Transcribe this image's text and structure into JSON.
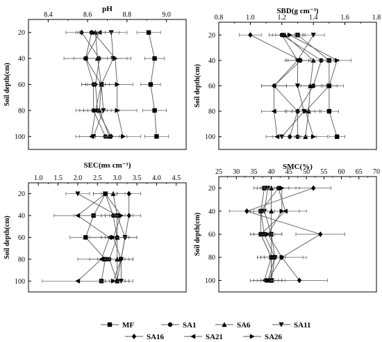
{
  "legend": [
    {
      "name": "MF",
      "marker": "square"
    },
    {
      "name": "SA1",
      "marker": "circle"
    },
    {
      "name": "SA6",
      "marker": "triangle-up"
    },
    {
      "name": "SA11",
      "marker": "triangle-down"
    },
    {
      "name": "SA16",
      "marker": "diamond"
    },
    {
      "name": "SA21",
      "marker": "triangle-left"
    },
    {
      "name": "SA26",
      "marker": "triangle-right"
    }
  ],
  "chart_data": [
    {
      "type": "line",
      "title": "pH",
      "ylabel": "Soil depth(cm)",
      "xlim": [
        8.3,
        9.1
      ],
      "xticks": [
        8.4,
        8.6,
        8.8,
        9.0
      ],
      "ylim": [
        10,
        110
      ],
      "yticks": [
        20,
        40,
        60,
        80,
        100
      ],
      "depths": [
        20,
        40,
        60,
        80,
        100
      ],
      "series": [
        {
          "name": "MF",
          "values": [
            8.91,
            8.94,
            8.92,
            8.94,
            8.95
          ],
          "errors": [
            0.06,
            0.05,
            0.05,
            0.06,
            0.06
          ]
        },
        {
          "name": "SA1",
          "values": [
            8.62,
            8.59,
            8.63,
            8.63,
            8.69
          ],
          "errors": [
            0.07,
            0.06,
            0.06,
            0.07,
            0.07
          ]
        },
        {
          "name": "SA6",
          "values": [
            8.64,
            8.65,
            8.67,
            8.66,
            8.71
          ],
          "errors": [
            0.08,
            0.07,
            0.07,
            0.08,
            0.07
          ]
        },
        {
          "name": "SA11",
          "values": [
            8.72,
            8.73,
            8.67,
            8.68,
            8.63
          ],
          "errors": [
            0.08,
            0.07,
            0.08,
            0.08,
            0.07
          ]
        },
        {
          "name": "SA16",
          "values": [
            8.57,
            8.66,
            8.64,
            8.65,
            8.72
          ],
          "errors": [
            0.08,
            0.08,
            0.07,
            0.07,
            0.08
          ]
        },
        {
          "name": "SA21",
          "values": [
            8.66,
            8.59,
            8.67,
            8.64,
            8.62
          ],
          "errors": [
            0.1,
            0.11,
            0.08,
            0.1,
            0.08
          ]
        },
        {
          "name": "SA26",
          "values": [
            8.63,
            8.74,
            8.75,
            8.75,
            8.78
          ],
          "errors": [
            0.09,
            0.08,
            0.08,
            0.1,
            0.09
          ]
        }
      ]
    },
    {
      "type": "line",
      "title": "SBD(g cm⁻³)",
      "ylabel": "Soil depth(cm)",
      "xlim": [
        0.8,
        1.8
      ],
      "xticks": [
        0.8,
        1.0,
        1.2,
        1.4,
        1.6,
        1.8
      ],
      "ylim": [
        10,
        110
      ],
      "yticks": [
        20,
        40,
        60,
        80,
        100
      ],
      "depths": [
        20,
        40,
        60,
        80,
        100
      ],
      "series": [
        {
          "name": "MF",
          "values": [
            1.3,
            1.5,
            1.5,
            1.5,
            1.55
          ],
          "errors": [
            0.05,
            0.06,
            0.05,
            0.06,
            0.05
          ]
        },
        {
          "name": "SA1",
          "values": [
            1.2,
            1.45,
            1.4,
            1.3,
            1.3
          ],
          "errors": [
            0.08,
            0.08,
            0.08,
            0.07,
            0.06
          ]
        },
        {
          "name": "SA6",
          "values": [
            1.22,
            1.4,
            1.38,
            1.37,
            1.35
          ],
          "errors": [
            0.08,
            0.08,
            0.08,
            0.08,
            0.07
          ]
        },
        {
          "name": "SA11",
          "values": [
            1.4,
            1.3,
            1.3,
            1.34,
            1.2
          ],
          "errors": [
            0.07,
            0.07,
            0.07,
            0.07,
            0.06
          ]
        },
        {
          "name": "SA16",
          "values": [
            1.0,
            1.32,
            1.15,
            1.3,
            1.25
          ],
          "errors": [
            0.07,
            0.08,
            0.08,
            0.08,
            0.07
          ]
        },
        {
          "name": "SA21",
          "values": [
            1.2,
            1.3,
            1.15,
            1.15,
            1.17
          ],
          "errors": [
            0.08,
            0.08,
            0.08,
            0.08,
            0.07
          ]
        },
        {
          "name": "SA26",
          "values": [
            1.25,
            1.55,
            1.5,
            1.35,
            1.4
          ],
          "errors": [
            0.09,
            0.09,
            0.09,
            0.09,
            0.09
          ]
        }
      ]
    },
    {
      "type": "line",
      "title": "SEC(ms cm⁻¹)",
      "ylabel": "Soil depth(cm)",
      "xlim": [
        0.75,
        4.75
      ],
      "xticks": [
        1.0,
        1.5,
        2.0,
        2.5,
        3.0,
        3.5,
        4.0,
        4.5
      ],
      "ylim": [
        10,
        110
      ],
      "yticks": [
        20,
        40,
        60,
        80,
        100
      ],
      "depths": [
        20,
        40,
        60,
        80,
        100
      ],
      "series": [
        {
          "name": "MF",
          "values": [
            2.7,
            2.4,
            2.2,
            2.7,
            2.6
          ],
          "errors": [
            0.3,
            0.5,
            0.4,
            0.4,
            0.6
          ]
        },
        {
          "name": "SA1",
          "values": [
            2.7,
            2.9,
            3.0,
            2.8,
            3.0
          ],
          "errors": [
            0.3,
            0.3,
            0.3,
            0.3,
            0.3
          ]
        },
        {
          "name": "SA6",
          "values": [
            2.9,
            3.0,
            3.0,
            3.0,
            3.0
          ],
          "errors": [
            0.3,
            0.3,
            0.3,
            0.3,
            0.3
          ]
        },
        {
          "name": "SA11",
          "values": [
            2.0,
            3.0,
            3.2,
            3.1,
            3.1
          ],
          "errors": [
            0.3,
            0.3,
            0.3,
            0.3,
            0.3
          ]
        },
        {
          "name": "SA16",
          "values": [
            3.3,
            3.3,
            3.2,
            3.1,
            3.0
          ],
          "errors": [
            0.3,
            0.3,
            0.3,
            0.3,
            0.3
          ]
        },
        {
          "name": "SA21",
          "values": [
            2.7,
            2.0,
            2.8,
            2.6,
            2.0
          ],
          "errors": [
            0.3,
            0.6,
            0.5,
            0.6,
            0.9
          ]
        },
        {
          "name": "SA26",
          "values": [
            2.7,
            3.1,
            2.9,
            3.1,
            2.9
          ],
          "errors": [
            0.3,
            0.3,
            0.3,
            0.3,
            0.3
          ]
        }
      ]
    },
    {
      "type": "line",
      "title": "SMC(%)",
      "ylabel": "Soil depth(cm)",
      "xlim": [
        25,
        70
      ],
      "xticks": [
        25,
        30,
        35,
        40,
        45,
        50,
        55,
        60,
        65,
        70
      ],
      "ylim": [
        10,
        110
      ],
      "yticks": [
        20,
        40,
        60,
        80,
        100
      ],
      "depths": [
        20,
        40,
        60,
        80,
        100
      ],
      "series": [
        {
          "name": "MF",
          "values": [
            38.0,
            37.0,
            37.0,
            40.0,
            40.0
          ],
          "errors": [
            3.0,
            3.0,
            3.0,
            3.0,
            3.0
          ]
        },
        {
          "name": "SA1",
          "values": [
            42.0,
            37.0,
            38.0,
            41.0,
            39.0
          ],
          "errors": [
            3.0,
            3.0,
            3.0,
            3.0,
            3.0
          ]
        },
        {
          "name": "SA6",
          "values": [
            40.0,
            40.0,
            40.0,
            40.0,
            40.0
          ],
          "errors": [
            3.0,
            3.0,
            3.0,
            3.0,
            3.0
          ]
        },
        {
          "name": "SA11",
          "values": [
            39.0,
            38.0,
            40.0,
            41.0,
            40.0
          ],
          "errors": [
            3.0,
            3.0,
            3.0,
            3.0,
            3.0
          ]
        },
        {
          "name": "SA16",
          "values": [
            52.0,
            33.0,
            54.0,
            43.0,
            48.0
          ],
          "errors": [
            5.0,
            5.0,
            7.0,
            6.0,
            8.0
          ]
        },
        {
          "name": "SA21",
          "values": [
            42.0,
            44.0,
            37.0,
            40.0,
            38.0
          ],
          "errors": [
            3.0,
            6.0,
            3.0,
            4.0,
            3.0
          ]
        },
        {
          "name": "SA26",
          "values": [
            43.0,
            43.0,
            39.0,
            43.0,
            39.0
          ],
          "errors": [
            5.0,
            5.0,
            4.0,
            7.0,
            5.0
          ]
        }
      ]
    }
  ]
}
